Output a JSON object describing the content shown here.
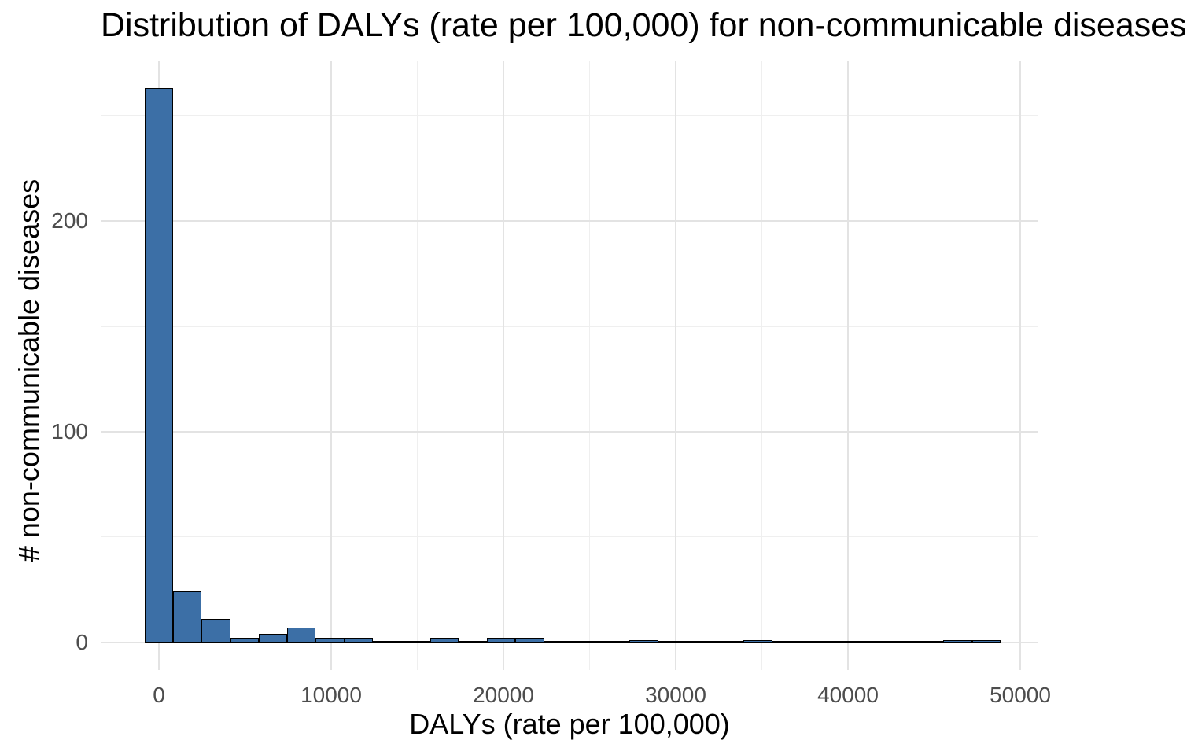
{
  "title": "Distribution of DALYs (rate per 100,000) for non-communicable diseases",
  "chart_data": {
    "type": "bar",
    "subtype": "histogram",
    "title": "Distribution of DALYs (rate per 100,000) for non-communicable diseases",
    "xlabel": "DALYs (rate per 100,000)",
    "ylabel": "# non-communicable diseases",
    "bin_width": 1656,
    "bins": [
      {
        "center": 0,
        "count": 263
      },
      {
        "center": 1656,
        "count": 24
      },
      {
        "center": 3312,
        "count": 11
      },
      {
        "center": 4968,
        "count": 2
      },
      {
        "center": 6624,
        "count": 4
      },
      {
        "center": 8280,
        "count": 7
      },
      {
        "center": 9936,
        "count": 2
      },
      {
        "center": 11592,
        "count": 2
      },
      {
        "center": 13248,
        "count": 0
      },
      {
        "center": 14904,
        "count": 0
      },
      {
        "center": 16560,
        "count": 2
      },
      {
        "center": 18216,
        "count": 0
      },
      {
        "center": 19872,
        "count": 2
      },
      {
        "center": 21528,
        "count": 2
      },
      {
        "center": 23184,
        "count": 0
      },
      {
        "center": 24840,
        "count": 0
      },
      {
        "center": 26496,
        "count": 0
      },
      {
        "center": 28152,
        "count": 1
      },
      {
        "center": 29808,
        "count": 0
      },
      {
        "center": 31464,
        "count": 0
      },
      {
        "center": 33120,
        "count": 0
      },
      {
        "center": 34776,
        "count": 1
      },
      {
        "center": 36432,
        "count": 0
      },
      {
        "center": 38088,
        "count": 0
      },
      {
        "center": 39744,
        "count": 0
      },
      {
        "center": 41400,
        "count": 0
      },
      {
        "center": 43056,
        "count": 0
      },
      {
        "center": 44712,
        "count": 0
      },
      {
        "center": 46368,
        "count": 1
      },
      {
        "center": 48024,
        "count": 1
      }
    ],
    "x_ticks_major": [
      0,
      10000,
      20000,
      30000,
      40000,
      50000
    ],
    "x_tick_labels": [
      "0",
      "10000",
      "20000",
      "30000",
      "40000",
      "50000"
    ],
    "x_ticks_minor": [
      5000,
      15000,
      25000,
      35000,
      45000
    ],
    "y_ticks_major": [
      0,
      100,
      200
    ],
    "y_tick_labels": [
      "0",
      "100",
      "200"
    ],
    "y_ticks_minor": [
      50,
      150,
      250
    ],
    "x_domain": [
      -3379,
      51050
    ],
    "y_domain": [
      -13.2,
      276.1
    ],
    "grid": true,
    "legend_position": "none",
    "colors": {
      "bar_fill": "#3C6FA6",
      "bar_stroke": "#000000",
      "grid_major": "#e3e3e3",
      "grid_minor": "#efefef",
      "tick_label": "#4d4d4d",
      "axis_title": "#000000",
      "background": "#ffffff"
    }
  }
}
